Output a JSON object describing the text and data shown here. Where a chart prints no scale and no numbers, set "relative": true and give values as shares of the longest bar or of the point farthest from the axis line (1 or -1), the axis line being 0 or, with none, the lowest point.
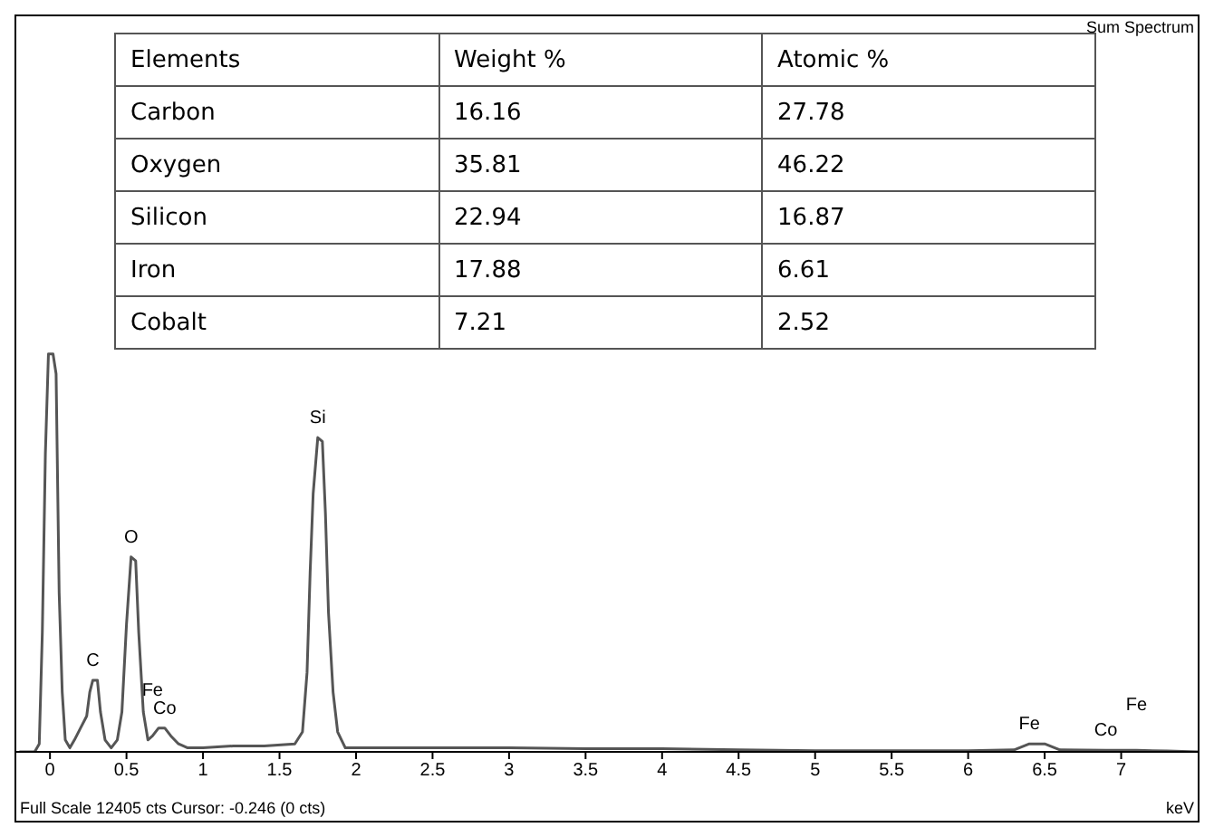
{
  "chart_data": [
    {
      "type": "line",
      "title": "Sum Spectrum",
      "xlabel": "keV",
      "relative": true,
      "xlim": [
        -0.22,
        7.5
      ],
      "xticks": [
        0,
        0.5,
        1,
        1.5,
        2,
        2.5,
        3,
        3.5,
        4,
        4.5,
        5,
        5.5,
        6,
        6.5,
        7
      ],
      "grid": false,
      "legend": false,
      "marker": "none",
      "x": [
        -0.2,
        -0.1,
        -0.07,
        -0.05,
        -0.03,
        -0.01,
        0.02,
        0.04,
        0.06,
        0.08,
        0.1,
        0.13,
        0.16,
        0.2,
        0.24,
        0.26,
        0.28,
        0.31,
        0.33,
        0.36,
        0.4,
        0.44,
        0.47,
        0.5,
        0.53,
        0.56,
        0.58,
        0.61,
        0.64,
        0.67,
        0.71,
        0.75,
        0.79,
        0.84,
        0.9,
        1.0,
        1.2,
        1.4,
        1.6,
        1.65,
        1.68,
        1.7,
        1.72,
        1.75,
        1.78,
        1.8,
        1.82,
        1.85,
        1.88,
        1.93,
        2.1,
        2.5,
        3.0,
        3.5,
        4.0,
        4.5,
        5.0,
        5.5,
        6.0,
        6.3,
        6.4,
        6.5,
        6.6,
        6.9,
        7.1,
        7.3,
        7.5
      ],
      "series": [
        {
          "color": "#555555",
          "values": [
            0,
            0,
            0.02,
            0.3,
            0.75,
            1.0,
            1.0,
            0.95,
            0.4,
            0.15,
            0.03,
            0.01,
            0.03,
            0.06,
            0.09,
            0.15,
            0.18,
            0.18,
            0.1,
            0.03,
            0.01,
            0.03,
            0.1,
            0.32,
            0.49,
            0.48,
            0.3,
            0.1,
            0.03,
            0.04,
            0.06,
            0.06,
            0.04,
            0.02,
            0.01,
            0.01,
            0.015,
            0.015,
            0.02,
            0.05,
            0.2,
            0.45,
            0.65,
            0.79,
            0.78,
            0.6,
            0.35,
            0.15,
            0.05,
            0.01,
            0.01,
            0.01,
            0.01,
            0.008,
            0.008,
            0.005,
            0.003,
            0.003,
            0.003,
            0.005,
            0.02,
            0.02,
            0.005,
            0.004,
            0.004,
            0.002,
            0
          ]
        }
      ],
      "annotations": [
        "Full Scale 12405 cts Cursor: -0.246  (0 cts)",
        {
          "text": "C",
          "x": 0.28,
          "y": 0.18
        },
        {
          "text": "O",
          "x": 0.53,
          "y": 0.49
        },
        {
          "text": "Fe",
          "x": 0.67,
          "y": 0.04
        },
        {
          "text": "Co",
          "x": 0.75,
          "y": 0.06
        },
        {
          "text": "Si",
          "x": 1.75,
          "y": 0.79
        },
        {
          "text": "Fe",
          "x": 6.4,
          "y": 0.02
        },
        {
          "text": "Fe",
          "x": 7.1,
          "y": 0.004
        },
        {
          "text": "Co",
          "x": 6.9,
          "y": 0.004
        }
      ]
    },
    {
      "type": "other",
      "annotations": [
        "Elements",
        "Weight %",
        "Atomic %",
        "Carbon",
        "16.16",
        "27.78",
        "Oxygen",
        "35.81",
        "46.22",
        "Silicon",
        "22.94",
        "16.87",
        "Iron",
        "17.88",
        "6.61",
        "Cobalt",
        "7.21",
        "2.52"
      ]
    }
  ]
}
